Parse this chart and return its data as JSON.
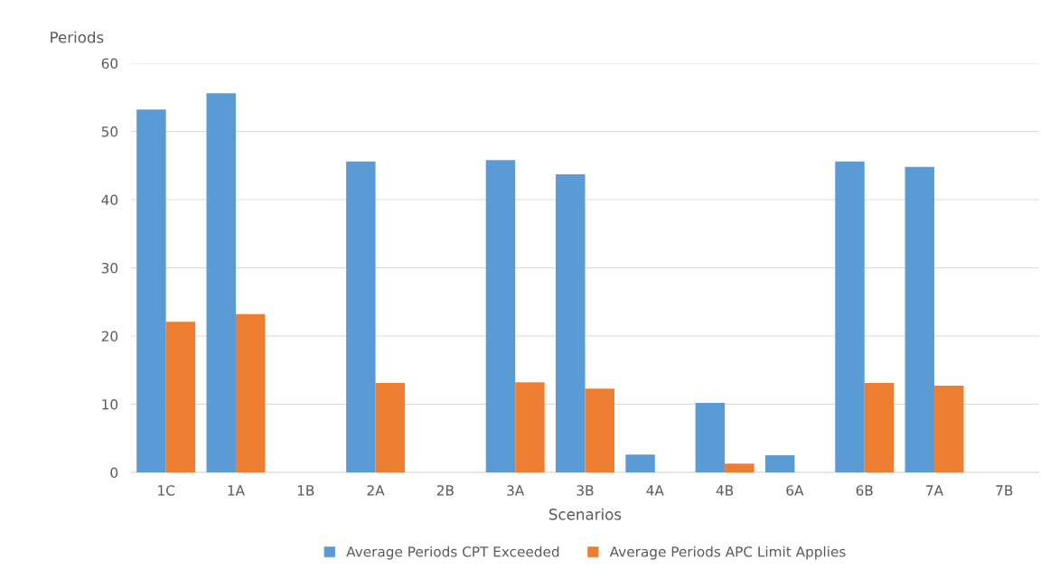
{
  "chart_data": {
    "type": "bar",
    "xlabel": "Scenarios",
    "ylabel": "Periods",
    "categories": [
      "1C",
      "1A",
      "1B",
      "2A",
      "2B",
      "3A",
      "3B",
      "4A",
      "4B",
      "6A",
      "6B",
      "7A",
      "7B"
    ],
    "series": [
      {
        "name": "Average Periods CPT Exceeded",
        "color": "#5b9bd5",
        "values": [
          53.2,
          55.6,
          0,
          45.6,
          0,
          45.8,
          43.7,
          2.6,
          10.2,
          2.5,
          45.6,
          44.8,
          0
        ]
      },
      {
        "name": "Average Periods APC Limit Applies",
        "color": "#ed7d31",
        "values": [
          22.1,
          23.2,
          0,
          13.1,
          0,
          13.2,
          12.3,
          0,
          1.3,
          0,
          13.1,
          12.7,
          0
        ]
      }
    ],
    "ylim": [
      0,
      60
    ],
    "yticks": [
      0,
      10,
      20,
      30,
      40,
      50,
      60
    ],
    "grid": "y",
    "legend": "bottom"
  }
}
